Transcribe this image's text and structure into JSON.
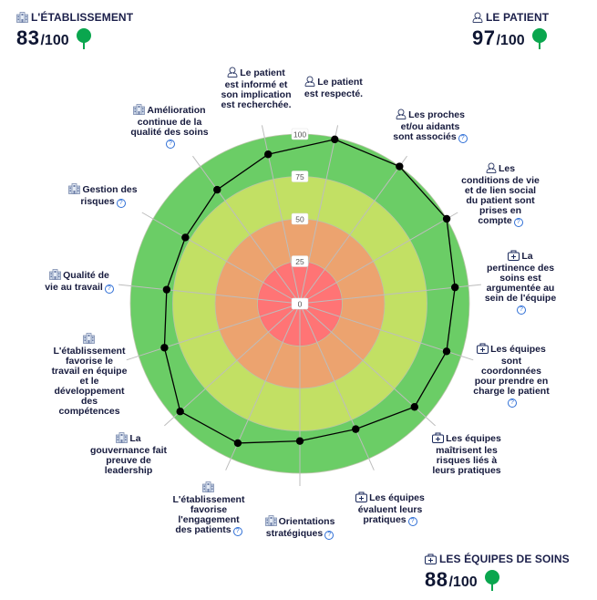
{
  "scores": {
    "etablissement": {
      "title": "L'ÉTABLISSEMENT",
      "value": "83",
      "max": "/100",
      "icon": "building-icon"
    },
    "patient": {
      "title": "LE PATIENT",
      "value": "97",
      "max": "/100",
      "icon": "person-icon"
    },
    "equipes": {
      "title": "LES ÉQUIPES DE SOINS",
      "value": "88",
      "max": "/100",
      "icon": "medical-kit-icon"
    }
  },
  "colors": {
    "band_0_25": "#ff7475",
    "band_25_50": "#eca36f",
    "band_50_75": "#c2e064",
    "band_75_100": "#6bcd66",
    "grid": "#bdbdbd",
    "series": "#000000",
    "help": "#2f6fd6",
    "tree": "#0aa64e"
  },
  "chart_data": {
    "type": "radar",
    "rlim": [
      0,
      100
    ],
    "ticks": [
      "0",
      "25",
      "50",
      "75",
      "100"
    ],
    "tick_values": [
      0,
      25,
      50,
      75,
      100
    ],
    "bands": [
      {
        "from": 0,
        "to": 25
      },
      {
        "from": 25,
        "to": 50
      },
      {
        "from": 50,
        "to": 75
      },
      {
        "from": 75,
        "to": 100
      }
    ],
    "axes": [
      {
        "lines": [
          "Le patient",
          "est respecté."
        ],
        "icon": "person-icon",
        "help": false,
        "value": 99
      },
      {
        "lines": [
          "Les proches",
          "et/ou aidants",
          "sont associés"
        ],
        "icon": "person-icon",
        "help": true,
        "value": 100
      },
      {
        "lines": [
          "Les",
          "conditions de vie",
          "et de lien social",
          "du patient sont",
          "prises en",
          "compte"
        ],
        "icon": "person-icon",
        "help": true,
        "value": 100
      },
      {
        "lines": [
          "La",
          "pertinence des",
          "soins est",
          "argumentée au",
          "sein de l'équipe"
        ],
        "icon": "medical-kit-icon",
        "help": true,
        "helpOwnLine": true,
        "value": 92
      },
      {
        "lines": [
          "Les équipes",
          "sont",
          "coordonnées",
          "pour prendre en",
          "charge le patient"
        ],
        "icon": "medical-kit-icon",
        "help": true,
        "helpOwnLine": true,
        "value": 91
      },
      {
        "lines": [
          "Les équipes",
          "maîtrisent les",
          "risques liés à",
          "leurs pratiques"
        ],
        "icon": "medical-kit-icon",
        "help": false,
        "value": 91
      },
      {
        "lines": [
          "Les équipes",
          "évaluent leurs",
          "pratiques"
        ],
        "icon": "medical-kit-icon",
        "help": true,
        "value": 81
      },
      {
        "lines": [
          "Orientations",
          "stratégiques"
        ],
        "icon": "building-icon",
        "help": true,
        "value": 81
      },
      {
        "lines": [
          "",
          "L'établissement",
          "favorise",
          "l'engagement",
          "des patients"
        ],
        "icon": "building-icon",
        "iconOwnLine": true,
        "help": true,
        "value": 90
      },
      {
        "lines": [
          "La",
          "gouvernance fait",
          "preuve de",
          "leadership"
        ],
        "icon": "building-icon",
        "help": false,
        "value": 95
      },
      {
        "lines": [
          "",
          "L'établissement",
          "favorise le",
          "travail en équipe",
          "et le",
          "développement",
          "des",
          "compétences"
        ],
        "icon": "building-icon",
        "iconOwnLine": true,
        "help": false,
        "value": 84
      },
      {
        "lines": [
          "Qualité de",
          "vie au travail"
        ],
        "icon": "building-icon",
        "help": true,
        "value": 79
      },
      {
        "lines": [
          "Gestion des",
          "risques"
        ],
        "icon": "building-icon",
        "help": true,
        "value": 78
      },
      {
        "lines": [
          "Amélioration",
          "continue de la",
          "qualité des soins"
        ],
        "icon": "building-icon",
        "help": true,
        "helpOwnLine": true,
        "value": 83
      },
      {
        "lines": [
          "Le patient",
          "est informé et",
          "son implication",
          "est recherchée."
        ],
        "icon": "person-icon",
        "help": false,
        "value": 90
      }
    ]
  }
}
